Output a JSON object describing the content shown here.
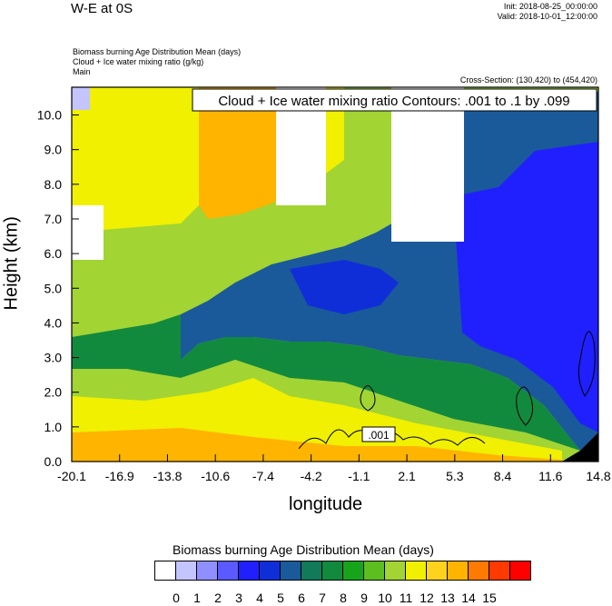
{
  "header": {
    "title": "W-E at 0S",
    "init": "Init: 2018-08-25_00:00:00",
    "valid": "Valid: 2018-10-01_12:00:00",
    "field_lines": [
      "Biomass burning Age Distribution Mean    (days)",
      "Cloud + Ice water mixing ratio   (g/kg)",
      "Main"
    ],
    "cross_section": "Cross-Section: (130,420) to (454,420)"
  },
  "chart_data": {
    "type": "heatmap",
    "xlabel": "longitude",
    "ylabel": "Height (km)",
    "x_ticks": [
      "-20.1",
      "-16.9",
      "-13.8",
      "-10.6",
      "-7.4",
      "-4.2",
      "-1.1",
      "2.1",
      "5.3",
      "8.4",
      "11.6",
      "14.8"
    ],
    "y_ticks": [
      "0.0",
      "1.0",
      "2.0",
      "3.0",
      "4.0",
      "5.0",
      "6.0",
      "7.0",
      "8.0",
      "9.0",
      "10.0"
    ],
    "xlim": [
      -20.1,
      14.8
    ],
    "ylim": [
      0.0,
      10.8
    ],
    "contour_title": "Cloud + Ice water mixing ratio Contours: .001 to .1 by .099",
    "contour_label": ".001",
    "colorbar": {
      "title": "Biomass burning Age Distribution Mean  (days)",
      "labels": [
        "0",
        "1",
        "2",
        "3",
        "4",
        "5",
        "6",
        "7",
        "8",
        "9",
        "10",
        "11",
        "12",
        "13",
        "14",
        "15"
      ],
      "colors": [
        "#ffffff",
        "#c4c4ff",
        "#8f8fff",
        "#5a5aff",
        "#2020ff",
        "#0f2ed8",
        "#1a5a9a",
        "#137a59",
        "#118a3e",
        "#17a41a",
        "#5cbf1f",
        "#a2d433",
        "#f0f000",
        "#ffd21e",
        "#ffb400",
        "#ff7a00",
        "#ff3a00",
        "#ff0000"
      ]
    }
  }
}
